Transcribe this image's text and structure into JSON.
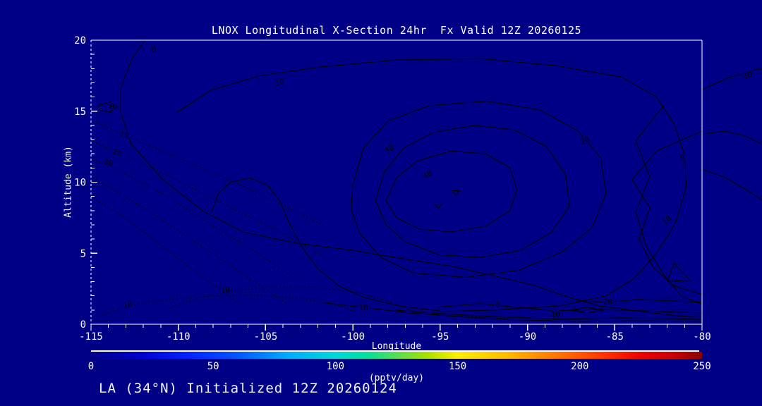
{
  "title": "LNOX Longitudinal X-Section 24hr  Fx Valid 12Z 20260125",
  "footer": "LA (34°N) Initialized 12Z 20260124",
  "axes": {
    "x": {
      "label": "Longitude",
      "min": -115,
      "max": -80,
      "major_ticks": [
        -115,
        -110,
        -105,
        -100,
        -95,
        -90,
        -85,
        -80
      ],
      "minor_step": 1
    },
    "y": {
      "label": "Altitude (km)",
      "min": 0,
      "max": 20,
      "major_ticks": [
        0,
        5,
        10,
        15,
        20
      ],
      "minor_step": 1
    }
  },
  "colorbar": {
    "min": 0,
    "max": 250,
    "ticks": [
      0,
      50,
      100,
      150,
      200,
      250
    ],
    "units": "(pptv/day)",
    "gradient_stops": [
      "#000087 0%",
      "#0000cc 8%",
      "#0022ff 16%",
      "#0055ff 24%",
      "#00aaff 32%",
      "#00d8d8 40%",
      "#00e0a0 45%",
      "#55dd55 50%",
      "#aae000 55%",
      "#ffee00 60%",
      "#ffbb00 68%",
      "#ff7700 76%",
      "#ff3300 84%",
      "#ee0000 90%",
      "#cc0000 95%",
      "#8b0000 100%"
    ]
  },
  "chart_data": {
    "type": "contour",
    "title": "LNOX Longitudinal X-Section 24hr  Fx Valid 12Z 20260125",
    "xlabel": "Longitude",
    "ylabel": "Altitude (km)",
    "xlim": [
      -115,
      -80
    ],
    "ylim": [
      0,
      20
    ],
    "units": "pptv/day",
    "contour_interval": 10,
    "levels_labeled": [
      0,
      10,
      20,
      30,
      40
    ],
    "negative_or_weak_style": "dotted",
    "peak": {
      "lon": -94,
      "alt_km": 9,
      "value_approx_pptv_day": 50
    },
    "line_color": "#000000",
    "background_color": "#000087",
    "contours": [
      {
        "level": 0,
        "style": "solid",
        "closed": false,
        "pts": [
          [
            -111.9,
            20
          ],
          [
            -112.7,
            18.6
          ],
          [
            -113.3,
            16.6
          ],
          [
            -113.3,
            14.9
          ],
          [
            -112.7,
            12.7
          ],
          [
            -110.9,
            10.2
          ],
          [
            -108.5,
            7.9
          ],
          [
            -106.3,
            6.5
          ],
          [
            -103.2,
            5.7
          ],
          [
            -100,
            5.2
          ],
          [
            -97.6,
            4.7
          ],
          [
            -94.4,
            4.1
          ],
          [
            -91.9,
            3.4
          ],
          [
            -89.5,
            2.7
          ],
          [
            -87.9,
            2
          ],
          [
            -85.9,
            1.3
          ],
          [
            -83.5,
            0.9
          ],
          [
            -81.4,
            0.6
          ],
          [
            -80,
            0.5
          ]
        ]
      },
      {
        "level": 10,
        "style": "solid",
        "closed": false,
        "pts": [
          [
            -110.1,
            14.9
          ],
          [
            -108.1,
            16.5
          ],
          [
            -105.3,
            17.5
          ],
          [
            -102,
            18.1
          ],
          [
            -97.6,
            18.6
          ],
          [
            -92.7,
            18.7
          ],
          [
            -88.3,
            18.2
          ],
          [
            -84.6,
            17.4
          ],
          [
            -82.6,
            16
          ],
          [
            -81.6,
            14.1
          ],
          [
            -81,
            11.9
          ],
          [
            -80.9,
            9.7
          ],
          [
            -81.5,
            7.2
          ],
          [
            -82.6,
            5
          ],
          [
            -83.9,
            3.2
          ],
          [
            -85.5,
            2
          ],
          [
            -88.1,
            1.3
          ],
          [
            -91.9,
            1
          ],
          [
            -94.8,
            0.9
          ],
          [
            -97.4,
            1.3
          ],
          [
            -99.4,
            1.9
          ],
          [
            -100.8,
            2.7
          ],
          [
            -102,
            3.9
          ],
          [
            -102.9,
            5.4
          ],
          [
            -103.6,
            7
          ],
          [
            -104.2,
            8.7
          ],
          [
            -104.9,
            9.8
          ],
          [
            -105.9,
            10.3
          ],
          [
            -107,
            10
          ],
          [
            -107.7,
            9.2
          ],
          [
            -108.1,
            7.9
          ]
        ]
      },
      {
        "level": 20,
        "style": "solid",
        "closed": true,
        "pts": [
          [
            -100,
            9.8
          ],
          [
            -99.4,
            12.4
          ],
          [
            -98,
            14.3
          ],
          [
            -95.6,
            15.4
          ],
          [
            -92.3,
            15.7
          ],
          [
            -89.3,
            15.1
          ],
          [
            -87.1,
            13.6
          ],
          [
            -85.8,
            11.7
          ],
          [
            -85.5,
            9.2
          ],
          [
            -86.3,
            6.8
          ],
          [
            -88,
            5.1
          ],
          [
            -90.5,
            3.8
          ],
          [
            -93.5,
            3.3
          ],
          [
            -96.5,
            3.6
          ],
          [
            -98.4,
            4.7
          ],
          [
            -99.6,
            6.4
          ],
          [
            -100.1,
            8.1
          ]
        ]
      },
      {
        "level": 30,
        "style": "solid",
        "closed": true,
        "pts": [
          [
            -98.7,
            8.7
          ],
          [
            -98.2,
            10.7
          ],
          [
            -97.1,
            12.4
          ],
          [
            -95.4,
            13.5
          ],
          [
            -93.1,
            14
          ],
          [
            -90.8,
            13.7
          ],
          [
            -88.9,
            12.5
          ],
          [
            -87.8,
            10.5
          ],
          [
            -87.6,
            8.3
          ],
          [
            -88.6,
            6.5
          ],
          [
            -90.4,
            5.2
          ],
          [
            -92.7,
            4.7
          ],
          [
            -95.1,
            4.9
          ],
          [
            -97,
            5.8
          ],
          [
            -98.1,
            7
          ]
        ]
      },
      {
        "level": 40,
        "style": "solid",
        "closed": true,
        "pts": [
          [
            -98.1,
            8.7
          ],
          [
            -97.5,
            10.3
          ],
          [
            -96.3,
            11.5
          ],
          [
            -94.4,
            12.2
          ],
          [
            -92.4,
            12
          ],
          [
            -91,
            11
          ],
          [
            -90.6,
            9.5
          ],
          [
            -91,
            8
          ],
          [
            -92.4,
            6.9
          ],
          [
            -94.4,
            6.5
          ],
          [
            -96.2,
            6.7
          ],
          [
            -97.5,
            7.5
          ]
        ]
      },
      {
        "level": 50,
        "style": "solid",
        "closed": true,
        "pts": [
          [
            -95.3,
            8.45
          ],
          [
            -94.9,
            8.45
          ],
          [
            -95.1,
            8.15
          ]
        ]
      },
      {
        "level": 50,
        "style": "solid",
        "closed": true,
        "pts": [
          [
            -94.3,
            9.4
          ],
          [
            -93.9,
            9.4
          ],
          [
            -94.1,
            9.05
          ]
        ]
      },
      {
        "level": 10,
        "style": "solid",
        "closed": false,
        "pts": [
          [
            -82.2,
            15.4
          ],
          [
            -83.8,
            12.9
          ],
          [
            -83,
            10.4
          ],
          [
            -83.8,
            7.9
          ],
          [
            -83.2,
            5.5
          ],
          [
            -82.2,
            3.5
          ],
          [
            -81.2,
            2
          ],
          [
            -80,
            1.4
          ]
        ]
      },
      {
        "level": 0,
        "style": "solid",
        "closed": false,
        "pts": [
          [
            -80,
            13.6
          ],
          [
            -82.6,
            12.2
          ],
          [
            -84,
            10.2
          ],
          [
            -83,
            8.2
          ],
          [
            -83.6,
            6
          ],
          [
            -82.8,
            4
          ],
          [
            -81.6,
            2.7
          ],
          [
            -80,
            2.1
          ]
        ]
      },
      {
        "level": 10,
        "style": "solid",
        "closed": true,
        "pts": [
          [
            -81.6,
            4.3
          ],
          [
            -80.7,
            3.1
          ],
          [
            -82,
            3
          ]
        ]
      },
      {
        "level": 0,
        "style": "solid",
        "closed": false,
        "pts": [
          [
            -95.2,
            1.2
          ],
          [
            -92.7,
            1.45
          ],
          [
            -90.7,
            1.2
          ],
          [
            -88.3,
            0.95
          ],
          [
            -85.9,
            1.05
          ],
          [
            -83.5,
            0.95
          ],
          [
            -81.4,
            0.85
          ],
          [
            -80,
            0.8
          ]
        ]
      },
      {
        "level": 10,
        "style": "solid",
        "closed": false,
        "pts": [
          [
            -97.6,
            1
          ],
          [
            -94.4,
            0.7
          ],
          [
            -91.1,
            0.5
          ],
          [
            -87.9,
            0.35
          ],
          [
            -84.7,
            0.45
          ],
          [
            -82.2,
            0.4
          ],
          [
            -80,
            0.35
          ]
        ]
      },
      {
        "level": 10,
        "style": "solid",
        "closed": false,
        "pts": [
          [
            -101.6,
            1.5
          ],
          [
            -99.2,
            1.15
          ],
          [
            -96.8,
            0.8
          ],
          [
            -93.5,
            0.5
          ],
          [
            -90.3,
            0.3
          ],
          [
            -87.1,
            0.2
          ],
          [
            -83.8,
            0.25
          ],
          [
            -80,
            0.2
          ]
        ]
      },
      {
        "level": 20,
        "style": "solid",
        "closed": false,
        "pts": [
          [
            -87.1,
            1.65
          ],
          [
            -85.4,
            1.55
          ],
          [
            -83.7,
            1.75
          ],
          [
            -81.8,
            1.65
          ],
          [
            -80,
            1.55
          ]
        ]
      },
      {
        "level": 20,
        "style": "solid",
        "closed": true,
        "pts": [
          [
            -87.6,
            1
          ],
          [
            -86.6,
            1.2
          ],
          [
            -85.6,
            1
          ],
          [
            -86.6,
            0.8
          ]
        ]
      },
      {
        "level": -10,
        "style": "dotted",
        "closed": false,
        "pts": [
          [
            -114.8,
            14.3
          ],
          [
            -113.1,
            13.3
          ],
          [
            -110.5,
            12
          ],
          [
            -107.3,
            10.3
          ],
          [
            -104,
            8.4
          ],
          [
            -101.6,
            6.9
          ]
        ]
      },
      {
        "level": -20,
        "style": "dotted",
        "closed": false,
        "pts": [
          [
            -114.9,
            12.9
          ],
          [
            -113.3,
            12
          ],
          [
            -110.5,
            10.4
          ],
          [
            -107.3,
            8.4
          ],
          [
            -104,
            6.4
          ],
          [
            -101.8,
            4.9
          ]
        ]
      },
      {
        "level": -30,
        "style": "dotted",
        "closed": false,
        "pts": [
          [
            -114.9,
            11.6
          ],
          [
            -113.5,
            10.9
          ],
          [
            -110.9,
            9.2
          ],
          [
            -108.1,
            7
          ],
          [
            -105.3,
            4.9
          ],
          [
            -103.3,
            3.2
          ]
        ]
      },
      {
        "level": -40,
        "style": "dotted",
        "closed": false,
        "pts": [
          [
            -114.9,
            10.3
          ],
          [
            -113.3,
            9.2
          ],
          [
            -110.5,
            7
          ],
          [
            -107.7,
            4.7
          ],
          [
            -105.3,
            2.7
          ],
          [
            -103.7,
            1.4
          ]
        ]
      },
      {
        "level": -50,
        "style": "dotted",
        "closed": false,
        "pts": [
          [
            -114.9,
            8.9
          ],
          [
            -113.3,
            7.7
          ],
          [
            -110.9,
            5.5
          ],
          [
            -108.5,
            3.2
          ],
          [
            -106.5,
            1.5
          ]
        ]
      },
      {
        "level": -10,
        "style": "dotted",
        "closed": false,
        "pts": [
          [
            -114.8,
            0.4
          ],
          [
            -113.7,
            0.95
          ],
          [
            -112.1,
            1.5
          ],
          [
            -110.1,
            1.8
          ],
          [
            -107.7,
            2
          ],
          [
            -105.3,
            2.05
          ],
          [
            -102.9,
            1.8
          ],
          [
            -100.9,
            1.35
          ],
          [
            -99.7,
            0.8
          ]
        ]
      },
      {
        "level": -10,
        "style": "dotted",
        "closed": false,
        "pts": [
          [
            -110.5,
            1.15
          ],
          [
            -109,
            1.8
          ],
          [
            -106.9,
            2.35
          ],
          [
            -104.5,
            2.65
          ],
          [
            -102.1,
            2.6
          ],
          [
            -99.6,
            2.2
          ],
          [
            -97.6,
            1.5
          ],
          [
            -96.4,
            0.85
          ]
        ]
      },
      {
        "level": -10,
        "style": "dotted",
        "closed": false,
        "pts": [
          [
            -95.2,
            0.65
          ],
          [
            -93.1,
            0.55
          ],
          [
            -91.1,
            0.45
          ]
        ]
      },
      {
        "level": 0,
        "style": "solid",
        "closed": true,
        "pts": [
          [
            -114.6,
            15.4
          ],
          [
            -113.9,
            15.65
          ],
          [
            -113.5,
            15.3
          ],
          [
            -113.9,
            14.95
          ],
          [
            -114.5,
            15.05
          ]
        ]
      },
      {
        "level": 20,
        "style": "solid",
        "closed": false,
        "pts": [
          [
            -80,
            16.5
          ],
          [
            -78.6,
            17.3
          ],
          [
            -77,
            17.9
          ],
          [
            -76.5,
            18
          ]
        ]
      },
      {
        "level": 10,
        "style": "solid",
        "closed": false,
        "pts": [
          [
            -80,
            13.4
          ],
          [
            -78.6,
            13.6
          ],
          [
            -77.4,
            13.2
          ],
          [
            -76.6,
            12.7
          ]
        ]
      },
      {
        "level": 0,
        "style": "solid",
        "closed": false,
        "pts": [
          [
            -80,
            10.9
          ],
          [
            -78.8,
            10.4
          ],
          [
            -77.5,
            9.5
          ],
          [
            -76.5,
            8.7
          ]
        ]
      }
    ],
    "contour_labels": [
      {
        "t": "0",
        "lon": -111.4,
        "alt": 19.3,
        "rot": 0
      },
      {
        "t": "10",
        "lon": -104.2,
        "alt": 17.0,
        "rot": -10
      },
      {
        "t": "20",
        "lon": -86.7,
        "alt": 12.9,
        "rot": -20
      },
      {
        "t": "30",
        "lon": -97.9,
        "alt": 12.3,
        "rot": -35
      },
      {
        "t": "40",
        "lon": -95.7,
        "alt": 10.5,
        "rot": -35
      },
      {
        "t": "10",
        "lon": -113.1,
        "alt": 13.3,
        "rot": 15
      },
      {
        "t": "20",
        "lon": -113.5,
        "alt": 12.05,
        "rot": 15
      },
      {
        "t": "30",
        "lon": -114.0,
        "alt": 11.35,
        "rot": 15
      },
      {
        "t": "10",
        "lon": -112.9,
        "alt": 1.35,
        "rot": -12
      },
      {
        "t": "10",
        "lon": -107.3,
        "alt": 2.35,
        "rot": -8
      },
      {
        "t": "0",
        "lon": -91.7,
        "alt": 1.35,
        "rot": 0
      },
      {
        "t": "10",
        "lon": -99.4,
        "alt": 1.15,
        "rot": 0
      },
      {
        "t": "10",
        "lon": -88.4,
        "alt": 0.65,
        "rot": 0
      },
      {
        "t": "20",
        "lon": -85.4,
        "alt": 1.55,
        "rot": 0
      },
      {
        "t": "10",
        "lon": -82.0,
        "alt": 7.3,
        "rot": -40
      },
      {
        "t": "0",
        "lon": -81.1,
        "alt": 11.7,
        "rot": -30
      },
      {
        "t": "0",
        "lon": -113.8,
        "alt": 15.3,
        "rot": 0
      },
      {
        "t": "20",
        "lon": -77.4,
        "alt": 17.5,
        "rot": -15
      }
    ]
  }
}
